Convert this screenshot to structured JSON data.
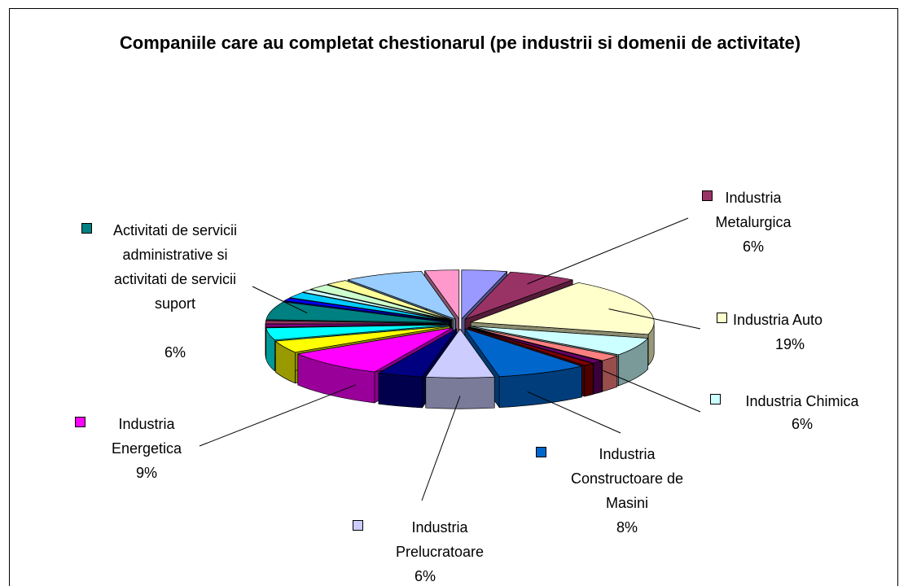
{
  "chart_data": {
    "type": "pie3d",
    "title": "Companiile care au completat chestionarul (pe industrii si domenii de activitate)",
    "categories": [
      null,
      "Industria Metalurgica",
      "Industria Auto",
      "Industria Chimica",
      null,
      null,
      null,
      "Industria Constructoare de Masini",
      "Industria Prelucratoare",
      null,
      "Industria Energetica",
      null,
      null,
      null,
      null,
      "Activitati de servicii administrative si activitati de servicii suport",
      null,
      null,
      null,
      null,
      null,
      null,
      null
    ],
    "values": [
      4,
      6,
      19,
      6,
      2,
      1,
      1,
      8,
      6,
      4,
      9,
      4,
      4,
      1,
      1,
      6,
      1,
      2,
      1,
      2,
      2,
      7,
      3
    ],
    "value_labels": [
      null,
      "6%",
      "19%",
      "6%",
      null,
      null,
      null,
      "8%",
      "6%",
      null,
      "9%",
      null,
      null,
      null,
      null,
      "6%",
      null,
      null,
      null,
      null,
      null,
      null,
      null
    ],
    "colors": [
      "#9999FF",
      "#993366",
      "#FFFFCC",
      "#CCFFFF",
      "#FF8080",
      "#660066",
      "#800000",
      "#0066CC",
      "#CCCCFF",
      "#000080",
      "#FF00FF",
      "#FFFF00",
      "#00FFFF",
      "#800080",
      "#993366",
      "#008080",
      "#0000FF",
      "#00CCFF",
      "#CCFFFF",
      "#CCFFCC",
      "#FFFF99",
      "#99CCFF",
      "#FF99CC"
    ]
  }
}
